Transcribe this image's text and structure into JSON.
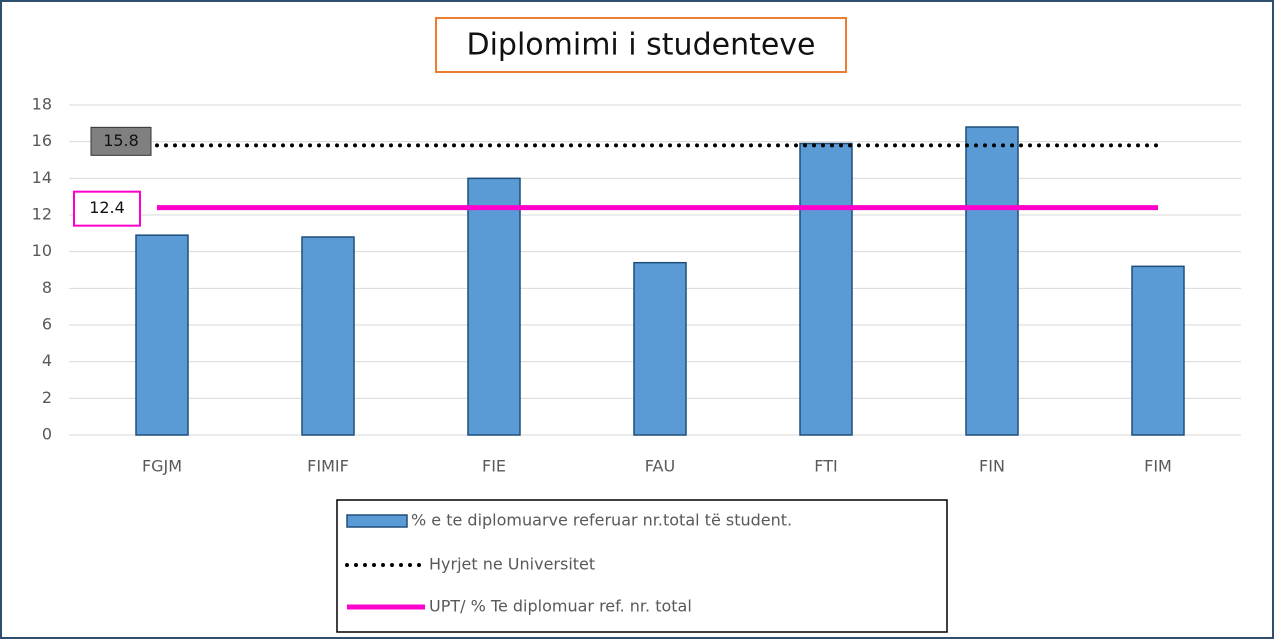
{
  "chart_data": {
    "type": "bar",
    "title": "Diplomimi i studenteve",
    "categories": [
      "FGJM",
      "FIMIF",
      "FIE",
      "FAU",
      "FTI",
      "FIN",
      "FIM"
    ],
    "series": [
      {
        "name": "% e te diplomuarve referuar nr.total të student.",
        "type": "bar",
        "color": "#5b9bd5",
        "values": [
          10.9,
          10.8,
          14.0,
          9.4,
          15.9,
          16.8,
          9.2
        ]
      },
      {
        "name": "Hyrjet ne Universitet",
        "type": "line",
        "style": "dotted",
        "color": "#000000",
        "values": [
          15.8,
          15.8,
          15.8,
          15.8,
          15.8,
          15.8,
          15.8
        ]
      },
      {
        "name": "UPT/ % Te diplomuar ref. nr. total",
        "type": "line",
        "style": "solid",
        "color": "#ff00cc",
        "values": [
          12.4,
          12.4,
          12.4,
          12.4,
          12.4,
          12.4,
          12.4
        ]
      }
    ],
    "ylim": [
      0,
      18
    ],
    "yticks": [
      0,
      2,
      4,
      6,
      8,
      10,
      12,
      14,
      16,
      18
    ],
    "grid": true
  }
}
